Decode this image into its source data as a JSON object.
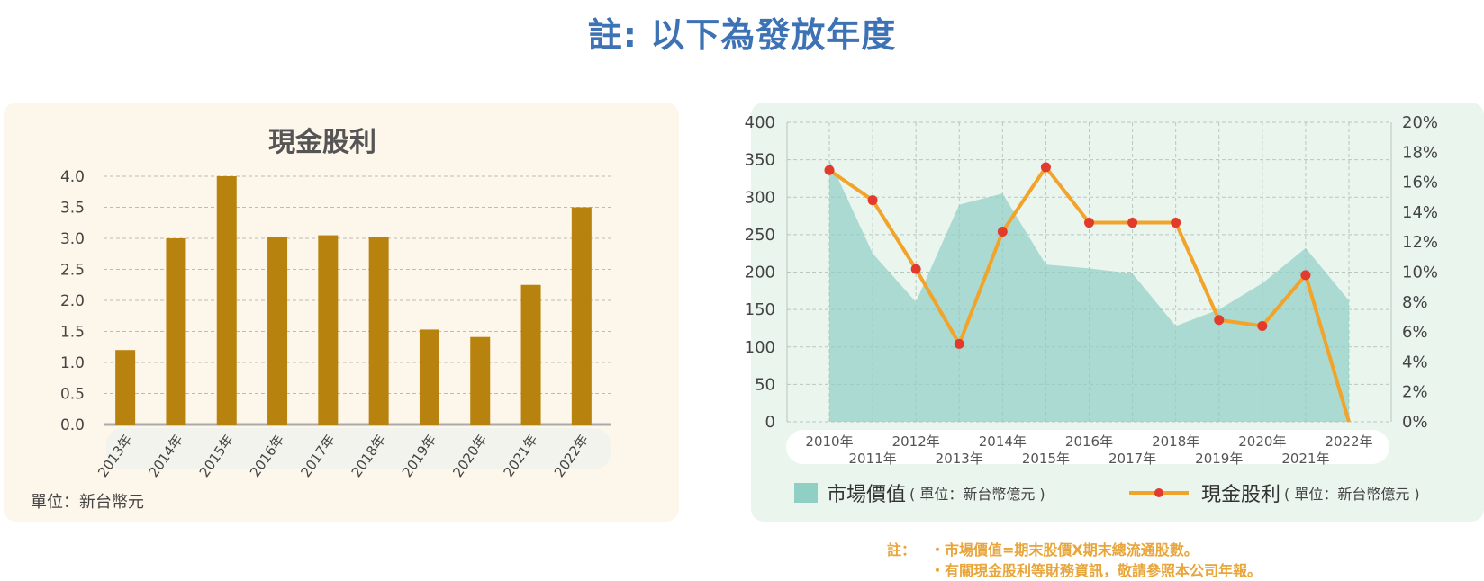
{
  "page": {
    "title": "註: 以下為發放年度"
  },
  "left_panel": {
    "unit_label": "單位：新台幣元"
  },
  "right_panel": {
    "legend": {
      "area_name": "市場價值",
      "area_unit": "( 單位：新台幣億元 )",
      "line_name": "現金股利",
      "line_unit": "( 單位：新台幣億元 )"
    },
    "footnote": {
      "lead": "註：",
      "line1": "・市場價值=期末股價X期末總流通股數。",
      "line2": "・有關現金股利等財務資訊，敬請參照本公司年報。"
    }
  },
  "colors": {
    "bar": "#b8820e",
    "area": "#8fcfc4",
    "line": "#f2a32a",
    "marker": "#e23b2c",
    "title": "#3d72b4",
    "footnote": "#e8a53a"
  },
  "chart_data": [
    {
      "type": "bar",
      "title": "現金股利",
      "categories": [
        "2013年",
        "2014年",
        "2015年",
        "2016年",
        "2017年",
        "2018年",
        "2019年",
        "2020年",
        "2021年",
        "2022年"
      ],
      "values": [
        1.2,
        3.0,
        4.0,
        3.02,
        3.05,
        3.02,
        1.53,
        1.41,
        2.25,
        3.5
      ],
      "ylim": [
        0,
        4.0
      ],
      "yticks": [
        "0.0",
        "0.5",
        "1.0",
        "1.5",
        "2.0",
        "2.5",
        "3.0",
        "3.5",
        "4.0"
      ],
      "grid": true
    },
    {
      "type": "area+line",
      "categories": [
        "2010年",
        "2011年",
        "2012年",
        "2013年",
        "2014年",
        "2015年",
        "2016年",
        "2017年",
        "2018年",
        "2019年",
        "2020年",
        "2021年",
        "2022年"
      ],
      "series": [
        {
          "name": "市場價值",
          "type": "area",
          "axis": "left",
          "values": [
            350,
            225,
            160,
            290,
            305,
            210,
            205,
            198,
            128,
            150,
            185,
            232,
            162
          ]
        },
        {
          "name": "現金股利",
          "type": "line",
          "axis": "right",
          "values": [
            16.8,
            14.8,
            10.2,
            5.2,
            12.7,
            17.0,
            13.3,
            13.3,
            13.3,
            6.8,
            6.4,
            9.8,
            0
          ]
        }
      ],
      "ylim_left": [
        0,
        400
      ],
      "yticks_left": [
        "0",
        "50",
        "100",
        "150",
        "200",
        "250",
        "300",
        "350",
        "400"
      ],
      "ylim_right": [
        0,
        20
      ],
      "yticks_right": [
        "0%",
        "2%",
        "4%",
        "6%",
        "8%",
        "10%",
        "12%",
        "14%",
        "16%",
        "18%",
        "20%"
      ],
      "grid": true,
      "legend_placement": "bottom"
    }
  ]
}
